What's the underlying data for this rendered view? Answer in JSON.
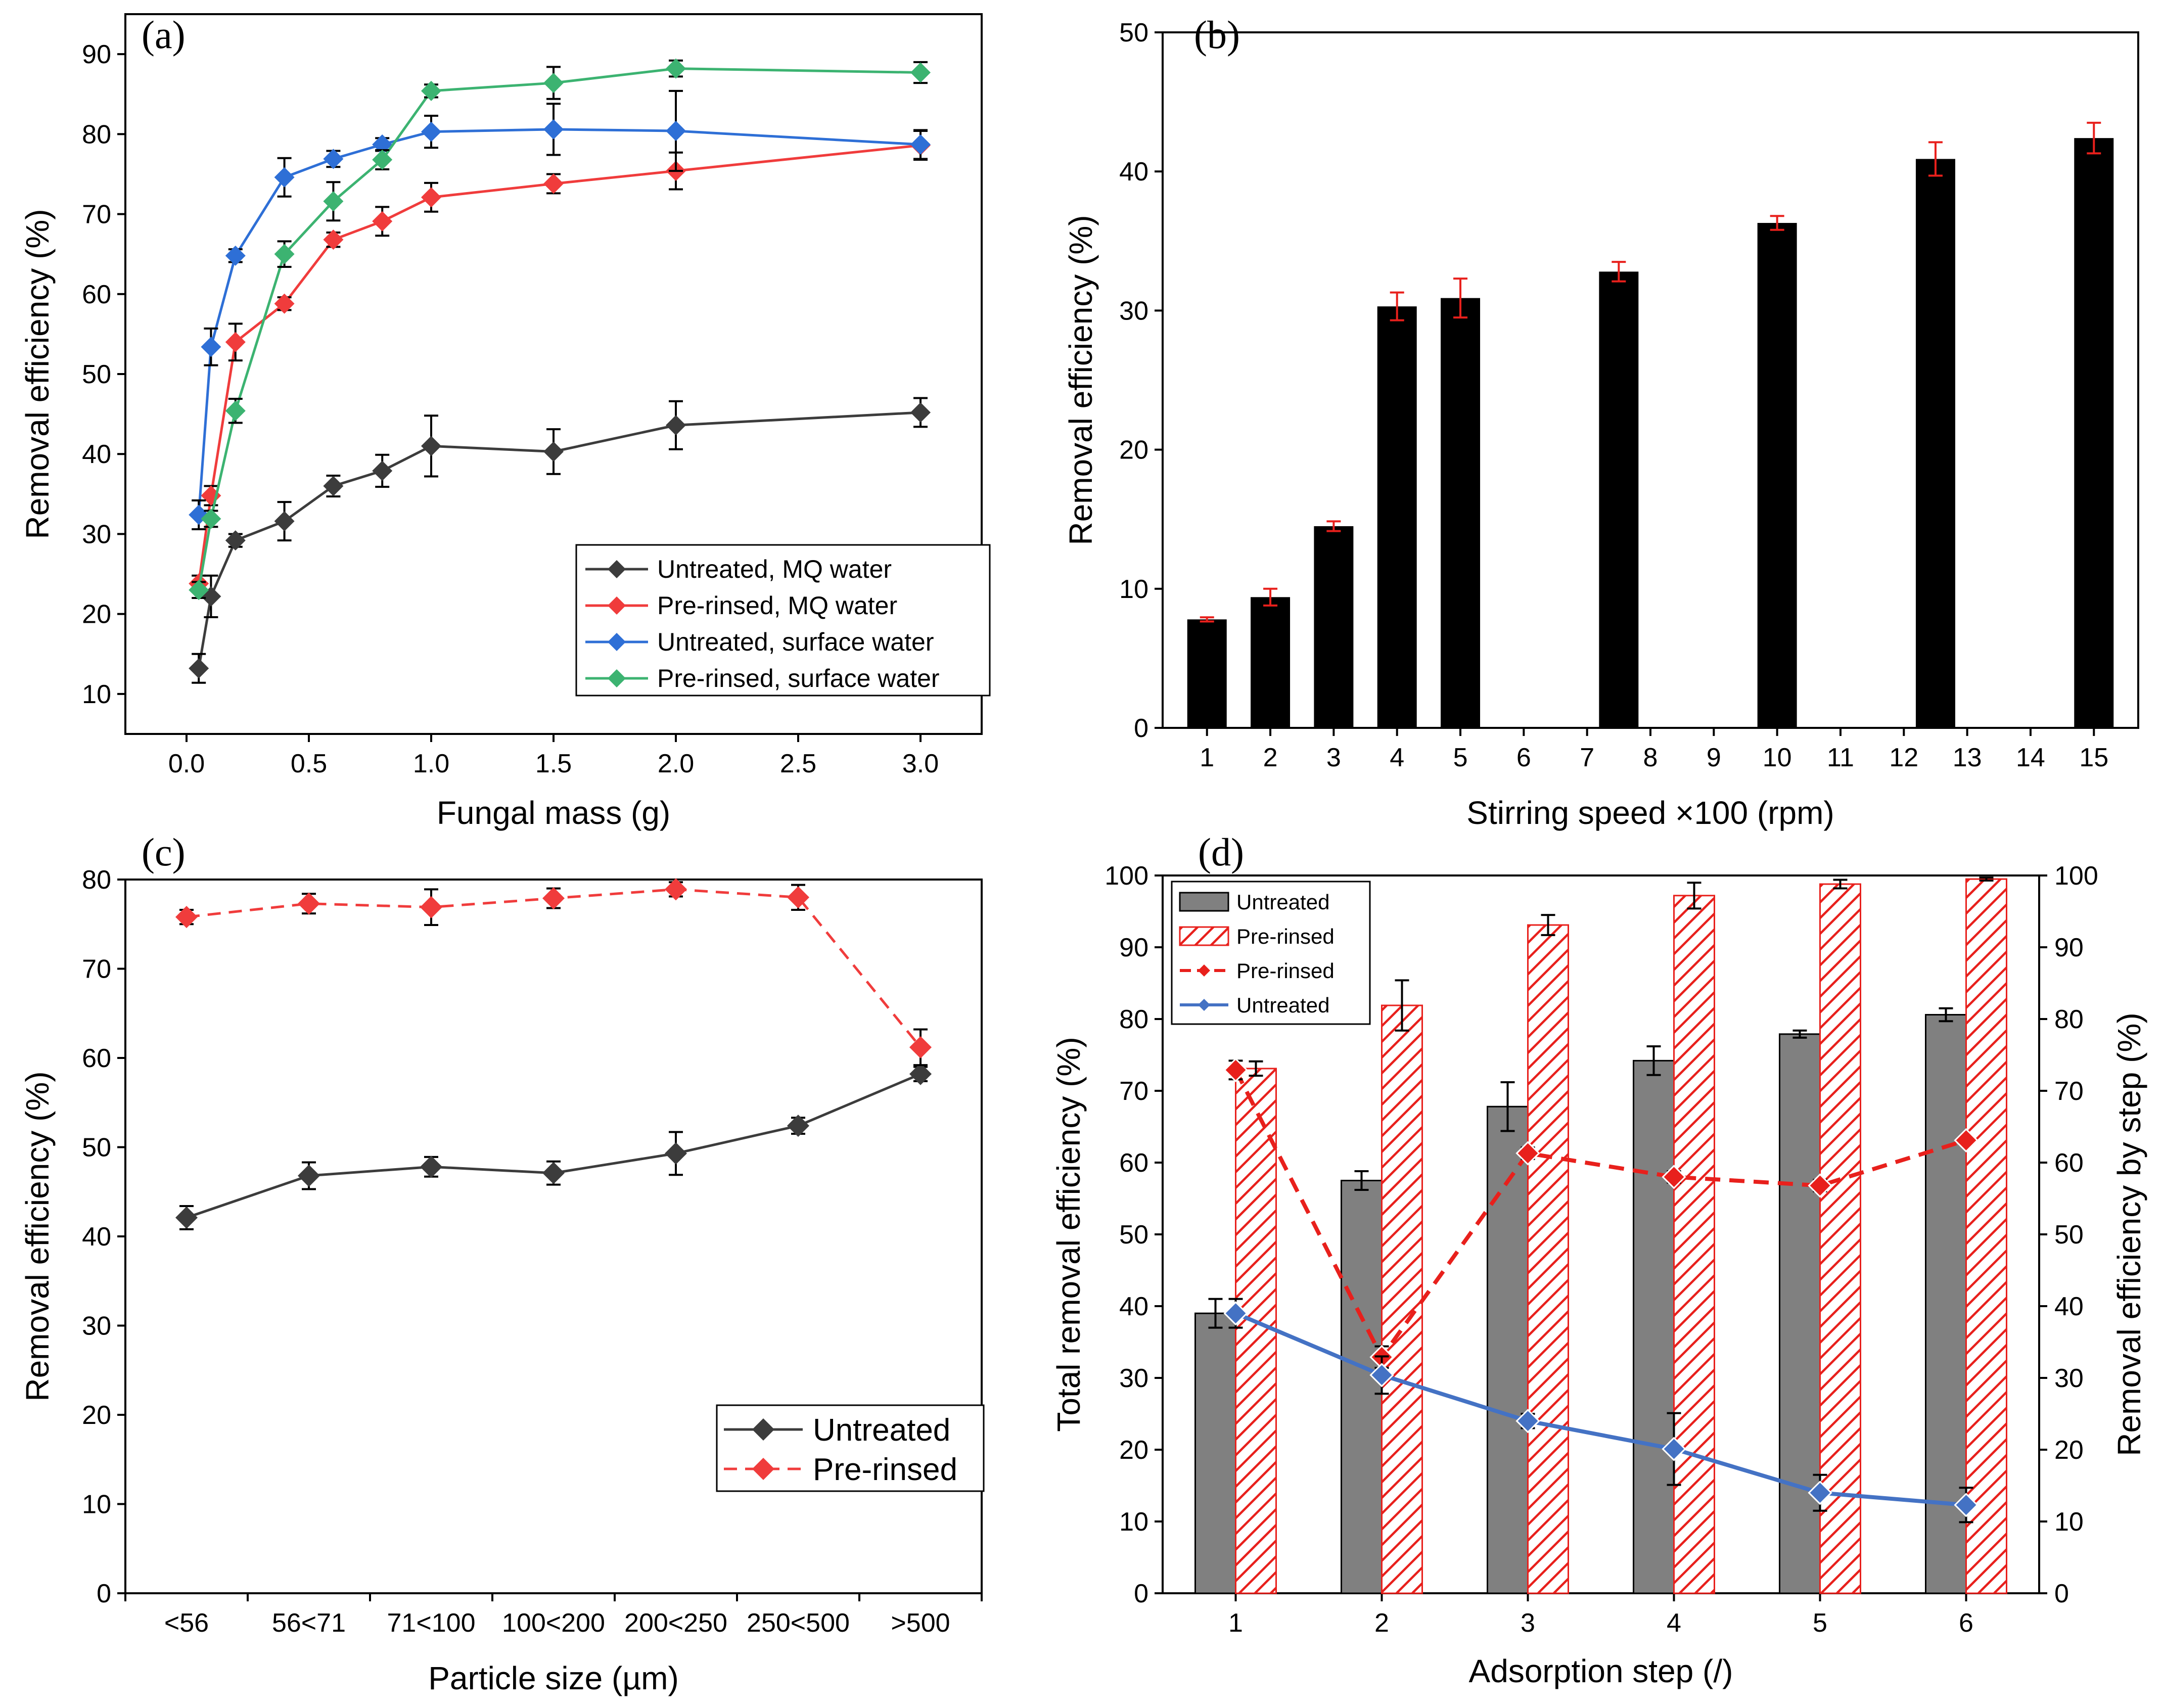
{
  "colors": {
    "black": "#000000",
    "gray": "#3c3c3c",
    "red": "#f03c3c",
    "blue": "#2e6fd6",
    "green": "#3cb371",
    "bar_black": "#000000",
    "bar_gray": "#808080",
    "hatch_red": "#e8201c",
    "line_red": "#e8201c",
    "line_blue": "#4472c4",
    "errorbar_red": "#e8201c"
  },
  "chart_data": [
    {
      "panel": "(a)",
      "type": "line",
      "xlabel": "Fungal mass (g)",
      "ylabel": "Removal efficiency (%)",
      "xlim": [
        -0.25,
        3.25
      ],
      "ylim": [
        5,
        95
      ],
      "xticks": [
        "0.0",
        "0.5",
        "1.0",
        "1.5",
        "2.0",
        "2.5",
        "3.0"
      ],
      "xtick_values": [
        0,
        0.5,
        1,
        1.5,
        2,
        2.5,
        3
      ],
      "yticks": [
        "10",
        "20",
        "30",
        "40",
        "50",
        "60",
        "70",
        "80",
        "90"
      ],
      "ytick_values": [
        10,
        20,
        30,
        40,
        50,
        60,
        70,
        80,
        90
      ],
      "legend_position": "bottom-right",
      "series": [
        {
          "name": "Untreated, MQ water",
          "color": "gray",
          "x": [
            0.05,
            0.1,
            0.2,
            0.4,
            0.6,
            0.8,
            1.0,
            1.5,
            2.0,
            3.0
          ],
          "y": [
            13.2,
            22.2,
            29.2,
            31.6,
            36.0,
            37.9,
            41.0,
            40.3,
            43.6,
            45.2
          ],
          "err": [
            1.8,
            2.6,
            0.8,
            2.4,
            1.3,
            2.0,
            3.8,
            2.8,
            3.0,
            1.8
          ]
        },
        {
          "name": "Pre-rinsed, MQ water",
          "color": "red",
          "x": [
            0.05,
            0.1,
            0.2,
            0.4,
            0.6,
            0.8,
            1.0,
            1.5,
            2.0,
            3.0
          ],
          "y": [
            23.8,
            34.8,
            54.0,
            58.8,
            66.8,
            69.1,
            72.1,
            73.8,
            75.4,
            78.6
          ],
          "err": [
            1.0,
            1.2,
            2.3,
            0.8,
            0.9,
            1.8,
            1.8,
            1.2,
            2.3,
            1.8
          ]
        },
        {
          "name": "Untreated, surface water",
          "color": "blue",
          "x": [
            0.05,
            0.1,
            0.2,
            0.4,
            0.6,
            0.8,
            1.0,
            1.5,
            2.0,
            3.0
          ],
          "y": [
            32.4,
            53.4,
            64.8,
            74.6,
            76.9,
            78.7,
            80.3,
            80.6,
            80.4,
            78.7
          ],
          "err": [
            1.8,
            2.3,
            0.8,
            2.4,
            1.0,
            0.8,
            2.0,
            3.2,
            5.0,
            1.8
          ]
        },
        {
          "name": "Pre-rinsed, surface water",
          "color": "green",
          "x": [
            0.05,
            0.1,
            0.2,
            0.4,
            0.6,
            0.8,
            1.0,
            1.5,
            2.0,
            3.0
          ],
          "y": [
            23.0,
            31.9,
            45.4,
            65.0,
            71.6,
            76.8,
            85.4,
            86.4,
            88.2,
            87.7
          ],
          "err": [
            1.0,
            1.0,
            1.5,
            1.6,
            2.4,
            1.2,
            0.8,
            2.0,
            1.0,
            1.3
          ]
        }
      ]
    },
    {
      "panel": "(b)",
      "type": "bar",
      "xlabel": "Stirring speed ×100 (rpm)",
      "ylabel": "Removal efficiency (%)",
      "ylim": [
        0,
        50
      ],
      "yticks": [
        "0",
        "10",
        "20",
        "30",
        "40",
        "50"
      ],
      "ytick_values": [
        0,
        10,
        20,
        30,
        40,
        50
      ],
      "xticks": [
        "1",
        "2",
        "3",
        "4",
        "5",
        "6",
        "7",
        "8",
        "9",
        "10",
        "11",
        "12",
        "13",
        "14",
        "15"
      ],
      "xtick_values": [
        1,
        2,
        3,
        4,
        5,
        6,
        7,
        8,
        9,
        10,
        11,
        12,
        13,
        14,
        15
      ],
      "xlim": [
        0.3,
        15.7
      ],
      "bars": {
        "x": [
          1,
          2,
          3,
          4,
          5,
          7.5,
          10,
          12.5,
          15
        ],
        "values": [
          7.8,
          9.4,
          14.5,
          30.3,
          30.9,
          32.8,
          36.3,
          40.9,
          42.4
        ],
        "err": [
          0.15,
          0.6,
          0.35,
          1.0,
          1.4,
          0.7,
          0.5,
          1.2,
          1.1
        ]
      }
    },
    {
      "panel": "(c)",
      "type": "line",
      "xlabel": "Particle size (µm)",
      "ylabel": "Removal efficiency (%)",
      "categories": [
        "<56",
        "56<71",
        "71<100",
        "100<200",
        "200<250",
        "250<500",
        ">500"
      ],
      "ylim": [
        0,
        80
      ],
      "yticks": [
        "0",
        "10",
        "20",
        "30",
        "40",
        "50",
        "60",
        "70",
        "80"
      ],
      "ytick_values": [
        0,
        10,
        20,
        30,
        40,
        50,
        60,
        70,
        80
      ],
      "legend_position": "bottom-right",
      "series": [
        {
          "name": "Untreated",
          "color": "gray",
          "style": "solid",
          "values": [
            42.1,
            46.8,
            47.8,
            47.1,
            49.3,
            52.4,
            58.2
          ],
          "err": [
            1.3,
            1.5,
            1.1,
            1.3,
            2.4,
            0.9,
            0.8
          ]
        },
        {
          "name": "Pre-rinsed",
          "color": "red",
          "style": "dashed",
          "values": [
            75.8,
            77.3,
            76.9,
            77.9,
            78.9,
            78.0,
            61.2
          ],
          "err": [
            0.8,
            1.1,
            2.0,
            1.1,
            0.8,
            1.4,
            2.0
          ]
        }
      ]
    },
    {
      "panel": "(d)",
      "type": "bar",
      "xlabel": "Adsorption step (/)",
      "ylabel": "Total removal efficiency (%)",
      "ylabel_right": "Removal efficiency by step (%)",
      "categories": [
        "1",
        "2",
        "3",
        "4",
        "5",
        "6"
      ],
      "ylim": [
        0,
        100
      ],
      "yticks": [
        "0",
        "10",
        "20",
        "30",
        "40",
        "50",
        "60",
        "70",
        "80",
        "90",
        "100"
      ],
      "ytick_values": [
        0,
        10,
        20,
        30,
        40,
        50,
        60,
        70,
        80,
        90,
        100
      ],
      "legend_position": "top-left",
      "bar_series": [
        {
          "name": "Untreated",
          "fill": "gray",
          "values": [
            39.0,
            57.5,
            67.8,
            74.2,
            77.9,
            80.6
          ],
          "err": [
            2.0,
            1.3,
            3.4,
            2.0,
            0.5,
            0.9
          ]
        },
        {
          "name": "Pre-rinsed",
          "fill": "hatched-red",
          "values": [
            73.1,
            81.9,
            93.1,
            97.2,
            98.8,
            99.5
          ],
          "err": [
            1.0,
            3.5,
            1.4,
            1.8,
            0.6,
            0.2
          ]
        }
      ],
      "line_series": [
        {
          "name": "Pre-rinsed",
          "color": "line_red",
          "style": "dashed",
          "axis": "right",
          "values": [
            72.9,
            32.9,
            61.3,
            58.0,
            56.8,
            63.1
          ],
          "err": [
            1.3,
            1.5,
            0.8,
            0.8,
            0.8,
            0.6
          ]
        },
        {
          "name": "Untreated",
          "color": "line_blue",
          "style": "solid",
          "axis": "right",
          "values": [
            39.0,
            30.4,
            24.0,
            20.1,
            14.0,
            12.3
          ],
          "err": [
            2.0,
            2.6,
            1.0,
            5.0,
            2.5,
            2.4
          ]
        }
      ]
    }
  ]
}
